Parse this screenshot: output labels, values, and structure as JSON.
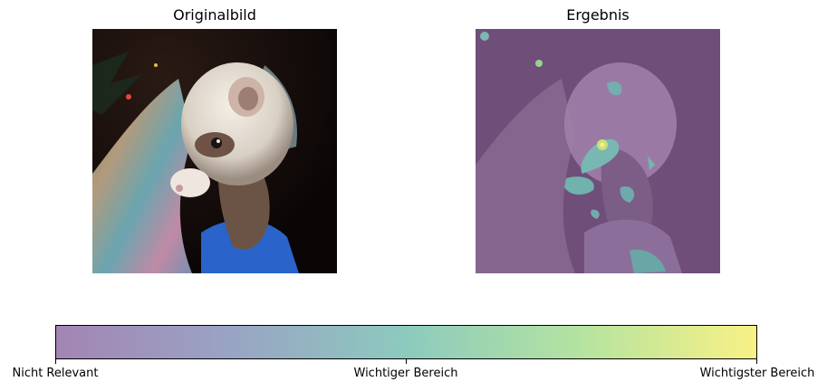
{
  "panels": {
    "original": {
      "title": "Originalbild"
    },
    "result": {
      "title": "Ergebnis"
    }
  },
  "colorbar": {
    "colors": {
      "low": "#a385b3",
      "mid_low": "#99a4c4",
      "mid": "#8ccabe",
      "mid_high": "#b5e3a0",
      "high": "#f8f185"
    },
    "ticks": [
      {
        "label": "Nicht Relevant",
        "position": 0.0
      },
      {
        "label": "Wichtiger Bereich",
        "position": 0.5
      },
      {
        "label": "Wichtigster Bereich",
        "position": 1.0
      }
    ]
  }
}
